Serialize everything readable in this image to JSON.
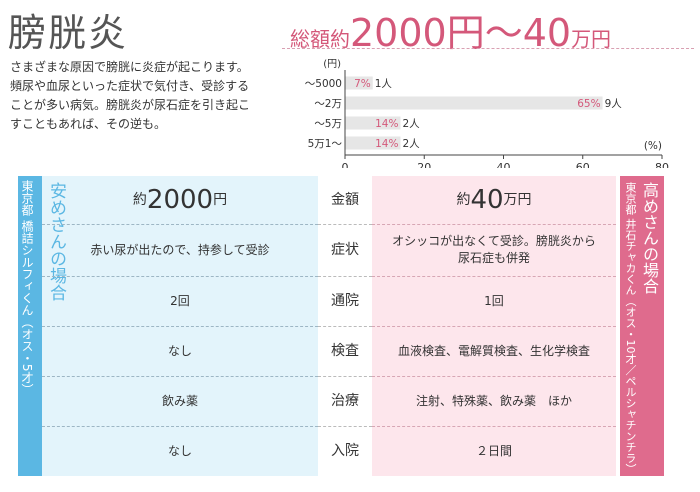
{
  "title": "膀胱炎",
  "description": "さまざまな原因で膀胱に炎症が起こります。頻尿や血尿といった症状で気付き、受診することが多い病気。膀胱炎が尿石症を引き起こすこともあれば、その逆も。",
  "total": {
    "label": "総額約",
    "amount": "2000円～40",
    "unit": "万円"
  },
  "colors": {
    "pink": "#d4587a",
    "blue": "#5bb7e3",
    "bar": "#e6e6e6"
  },
  "chart_data": {
    "type": "bar",
    "orientation": "horizontal",
    "y_unit_label": "(円)",
    "x_unit_label": "(%)",
    "xlim": [
      0,
      80
    ],
    "xticks": [
      "0",
      "20",
      "40",
      "60",
      "80"
    ],
    "categories": [
      "～5000",
      "～2万",
      "～5万",
      "5万1～"
    ],
    "values": [
      7,
      65,
      14,
      14
    ],
    "value_labels": [
      "7%",
      "65%",
      "14%",
      "14%"
    ],
    "counts": [
      "1人",
      "9人",
      "2人",
      "2人"
    ]
  },
  "left_case": {
    "heading": "安めさんの場合",
    "sub": "東京都 橋詰シルフィくん（オス・5才）",
    "cost_prefix": "約",
    "cost_num": "2000",
    "cost_unit": "円",
    "rows": [
      "赤い尿が出たので、持参して受診",
      "2回",
      "なし",
      "飲み薬",
      "なし"
    ]
  },
  "right_case": {
    "heading": "高めさんの場合",
    "sub": "東京都 井石チャカくん（オス・10才／ペルシャチンチラ）",
    "cost_prefix": "約",
    "cost_num": "40",
    "cost_unit": "万円",
    "rows": [
      "オシッコが出なくて受診。膀胱炎から尿石症も併発",
      "1回",
      "血液検査、電解質検査、生化学検査",
      "注射、特殊薬、飲み薬　ほか",
      "２日間"
    ]
  },
  "labels": [
    "金額",
    "症状",
    "通院",
    "検査",
    "治療",
    "入院"
  ]
}
